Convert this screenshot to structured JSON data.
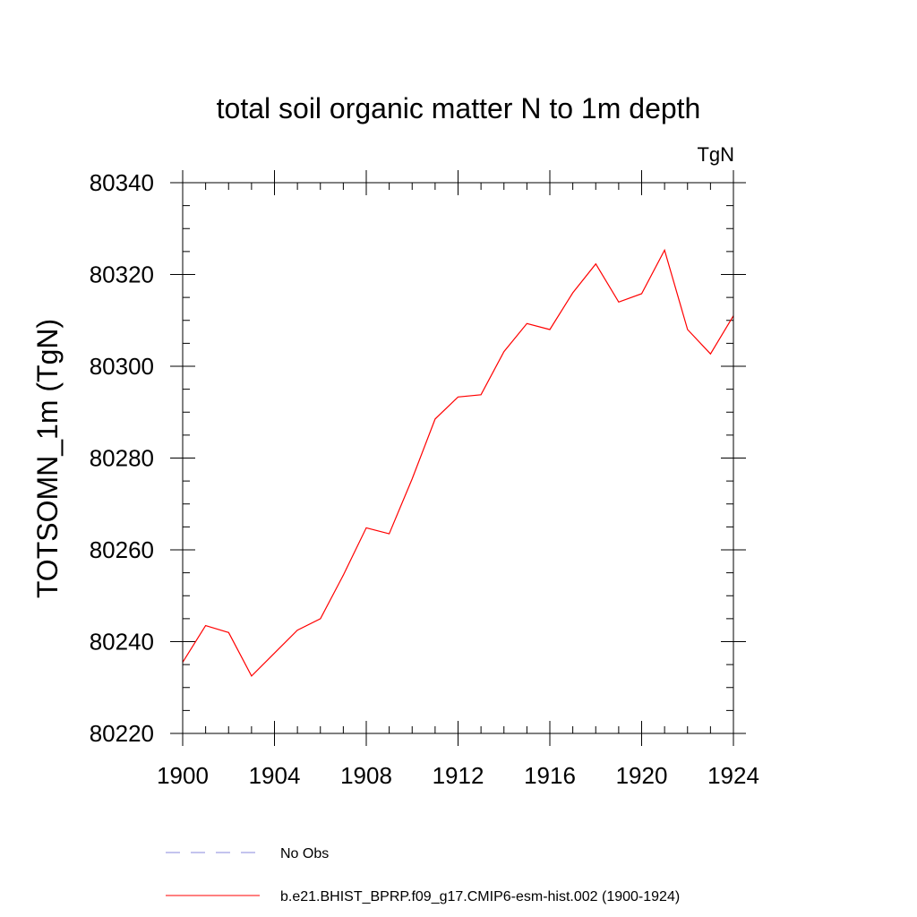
{
  "chart_data": {
    "type": "line",
    "title": "total soil organic matter N to 1m depth",
    "units_label": "TgN",
    "ylabel": "TOTSOMN_1m  (TgN)",
    "xlabel": "",
    "xlim": [
      1900,
      1924
    ],
    "ylim": [
      80220,
      80340
    ],
    "x_ticks": [
      1900,
      1904,
      1908,
      1912,
      1916,
      1920,
      1924
    ],
    "y_ticks": [
      80220,
      80240,
      80260,
      80280,
      80300,
      80320,
      80340
    ],
    "x_minor_step": 1,
    "y_minor_step": 5,
    "grid": false,
    "legend_position": "bottom",
    "series": [
      {
        "name": "b.e21.BHIST_BPRP.f09_g17.CMIP6-esm-hist.002 (1900-1924)",
        "color": "#ff0000",
        "style": "solid",
        "x": [
          1900,
          1901,
          1902,
          1903,
          1904,
          1905,
          1906,
          1907,
          1908,
          1909,
          1910,
          1911,
          1912,
          1913,
          1914,
          1915,
          1916,
          1917,
          1918,
          1919,
          1920,
          1921,
          1922,
          1923,
          1924
        ],
        "values": [
          80235.5,
          80243.5,
          80242.0,
          80232.5,
          80237.5,
          80242.5,
          80245.0,
          80254.5,
          80264.8,
          80263.5,
          80275.5,
          80288.5,
          80293.3,
          80293.8,
          80303.2,
          80309.3,
          80308.0,
          80316.0,
          80322.3,
          80314.0,
          80315.8,
          80325.3,
          80308.0,
          80302.7,
          80311.0
        ]
      }
    ],
    "legend": [
      {
        "label": "No Obs",
        "color": "#8a8adc",
        "style": "dashed"
      },
      {
        "label": "b.e21.BHIST_BPRP.f09_g17.CMIP6-esm-hist.002 (1900-1924)",
        "color": "#ff0000",
        "style": "solid"
      }
    ]
  }
}
